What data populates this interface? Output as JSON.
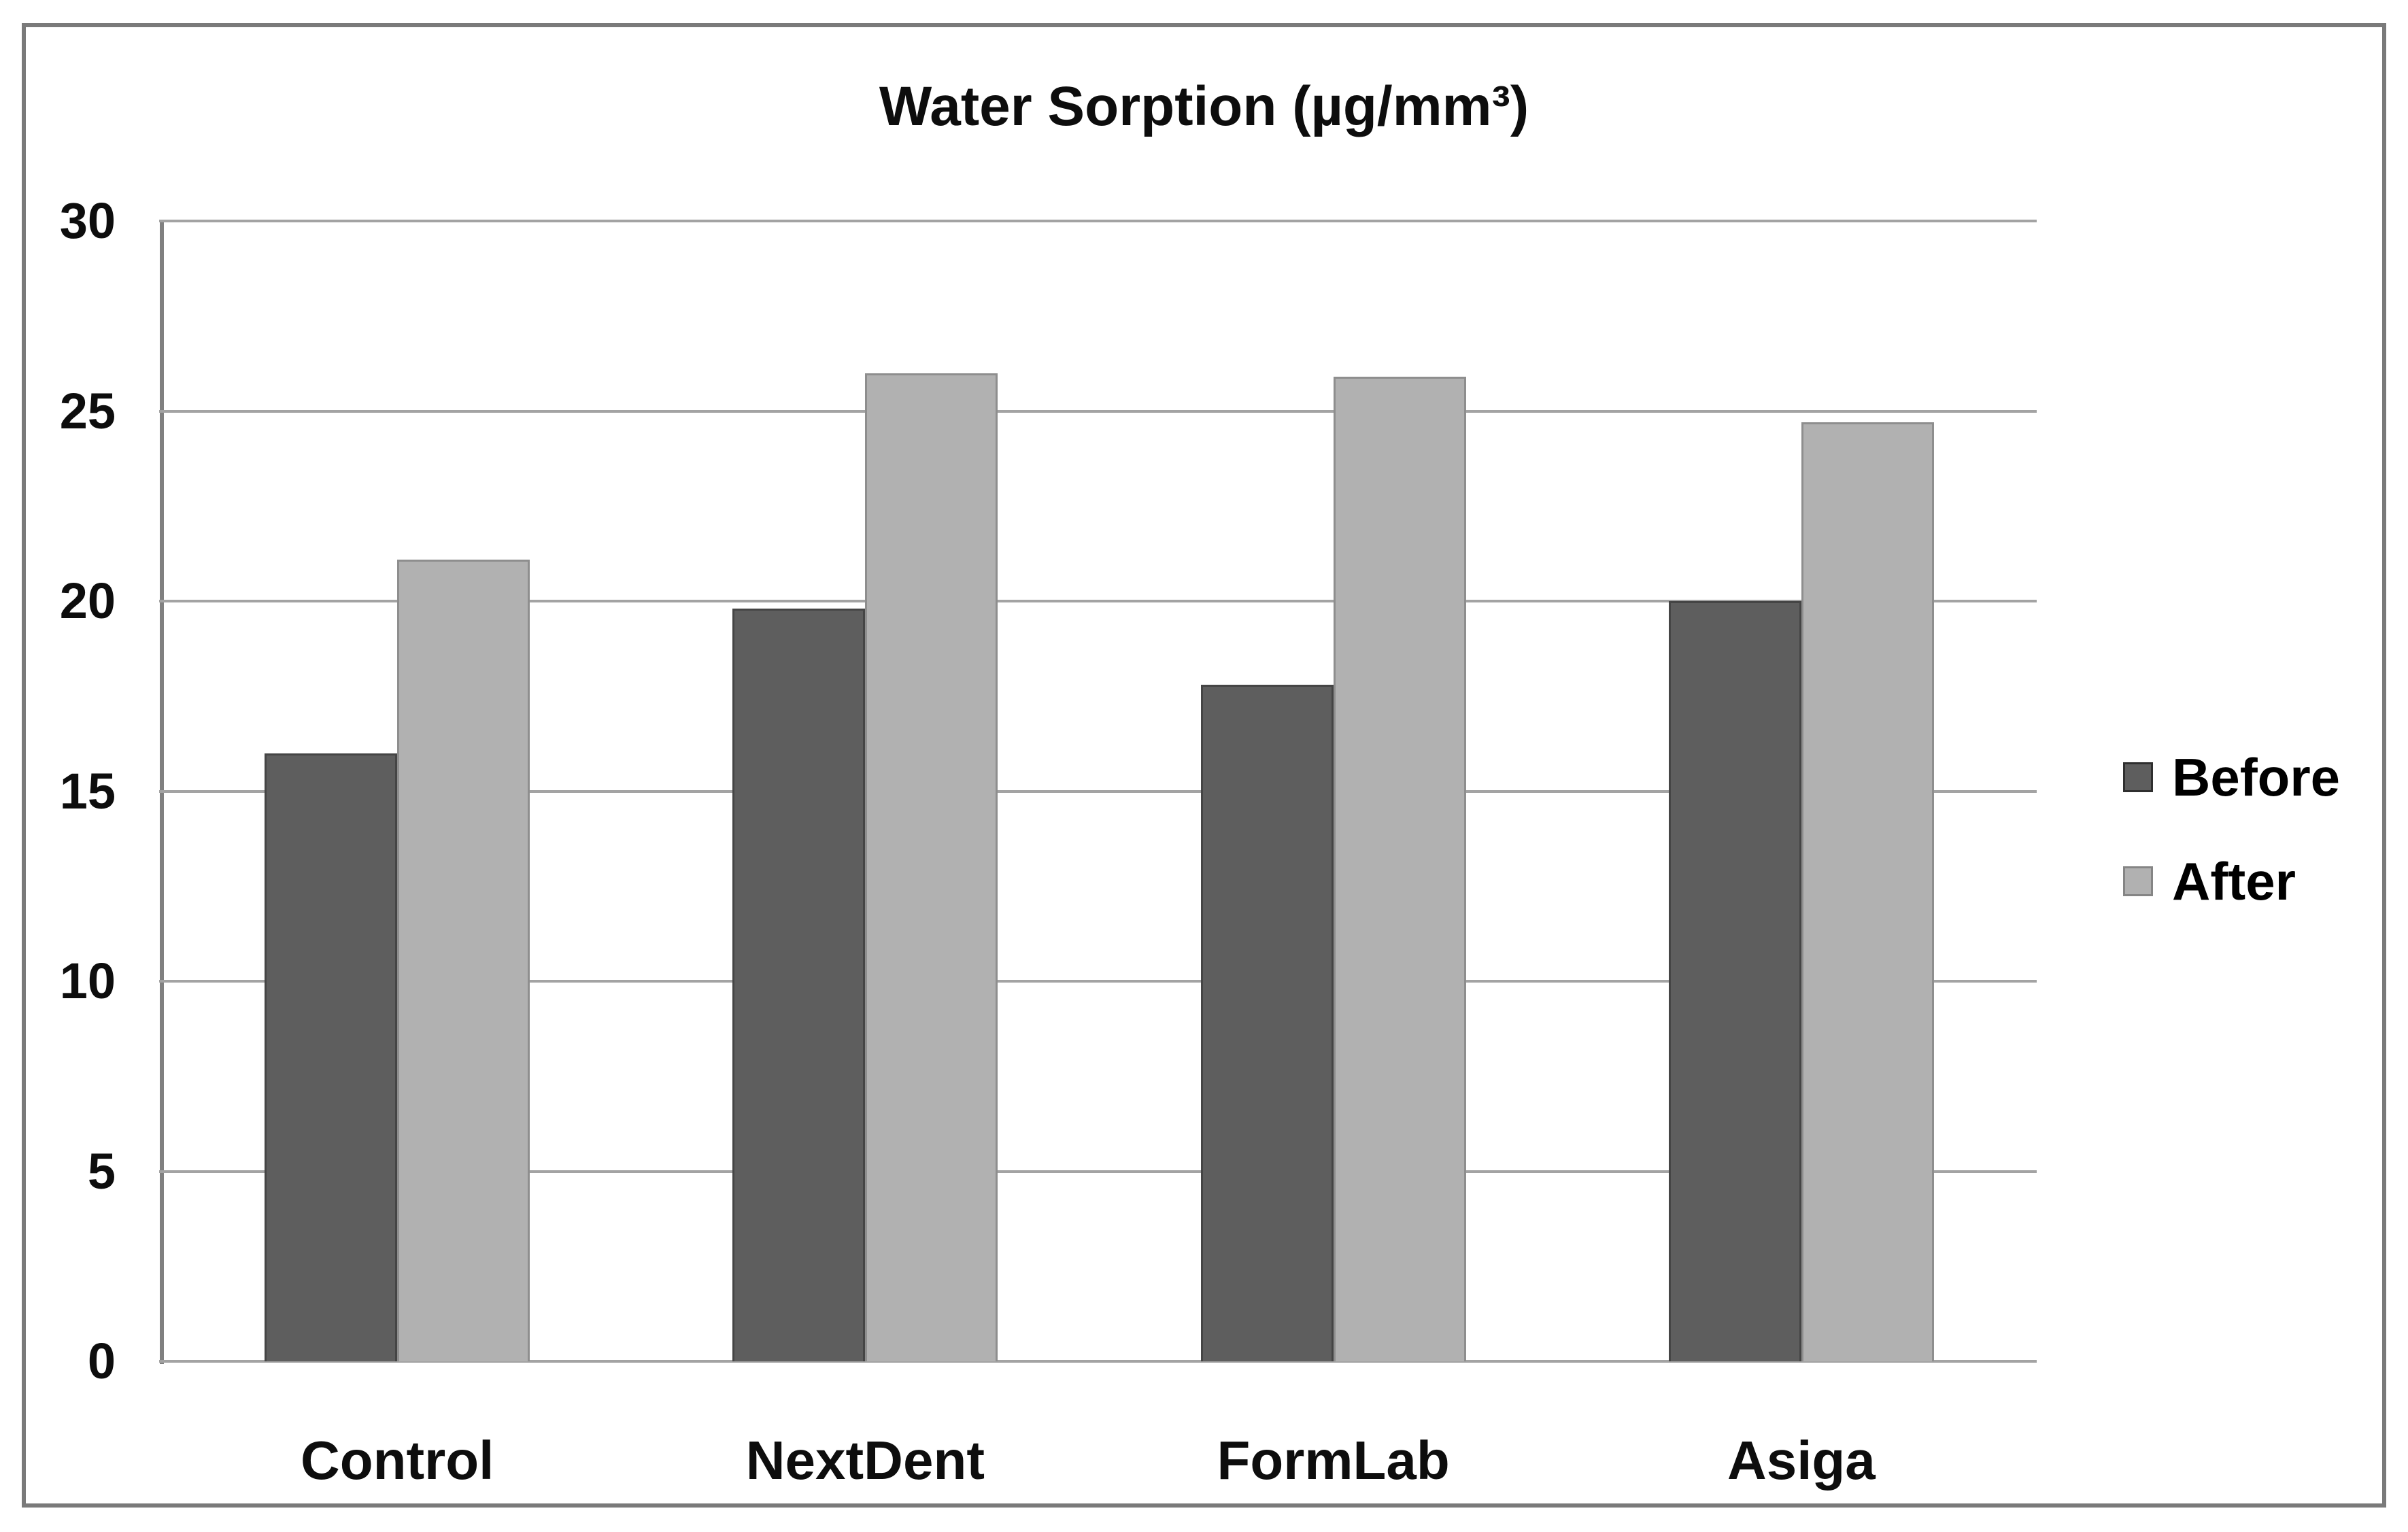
{
  "figure": {
    "title": {
      "prefix": "Water ",
      "emphasis": "Sorption ",
      "unit": "(µg/mm³)"
    }
  },
  "chart_data": {
    "type": "bar",
    "title": "Water Sorption (µg/mm³)",
    "categories": [
      "Control",
      "NextDent",
      "FormLab",
      "Asiga"
    ],
    "series": [
      {
        "name": "Before",
        "color": "#5e5e5e",
        "border_color": "#454545",
        "legend_border": "#2f2f2f",
        "values": [
          16.0,
          19.8,
          17.8,
          20.0
        ]
      },
      {
        "name": "After",
        "color": "#b1b1b1",
        "border_color": "#8e8e8e",
        "legend_border": "#858585",
        "values": [
          21.1,
          26.0,
          25.9,
          24.7
        ]
      }
    ],
    "y_axis": {
      "min": 0,
      "max": 30,
      "tick_step": 5,
      "ticks": [
        0,
        5,
        10,
        15,
        20,
        25,
        30
      ]
    },
    "x_axis": {
      "labels": [
        "Control",
        "NextDent",
        "FormLab",
        "Asiga"
      ]
    },
    "legend": {
      "position": "right",
      "entries": [
        "Before",
        "After"
      ]
    },
    "grid": true,
    "background": "#ffffff",
    "gridline_color": "#a3a3a3",
    "axis_color": "#808080",
    "border_color": "#7a7a7a"
  }
}
